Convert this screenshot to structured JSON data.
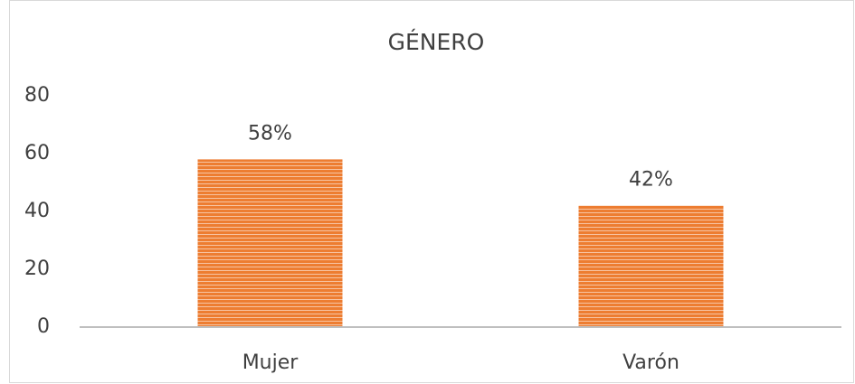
{
  "chart_data": {
    "type": "bar",
    "title": "GÉNERO",
    "categories": [
      "Mujer",
      "Varón"
    ],
    "values": [
      58,
      42
    ],
    "value_labels": [
      "58%",
      "42%"
    ],
    "color": "#ed7d31",
    "ylim": [
      0,
      80
    ],
    "yticks": [
      0,
      20,
      40,
      60,
      80
    ],
    "grid": false
  }
}
